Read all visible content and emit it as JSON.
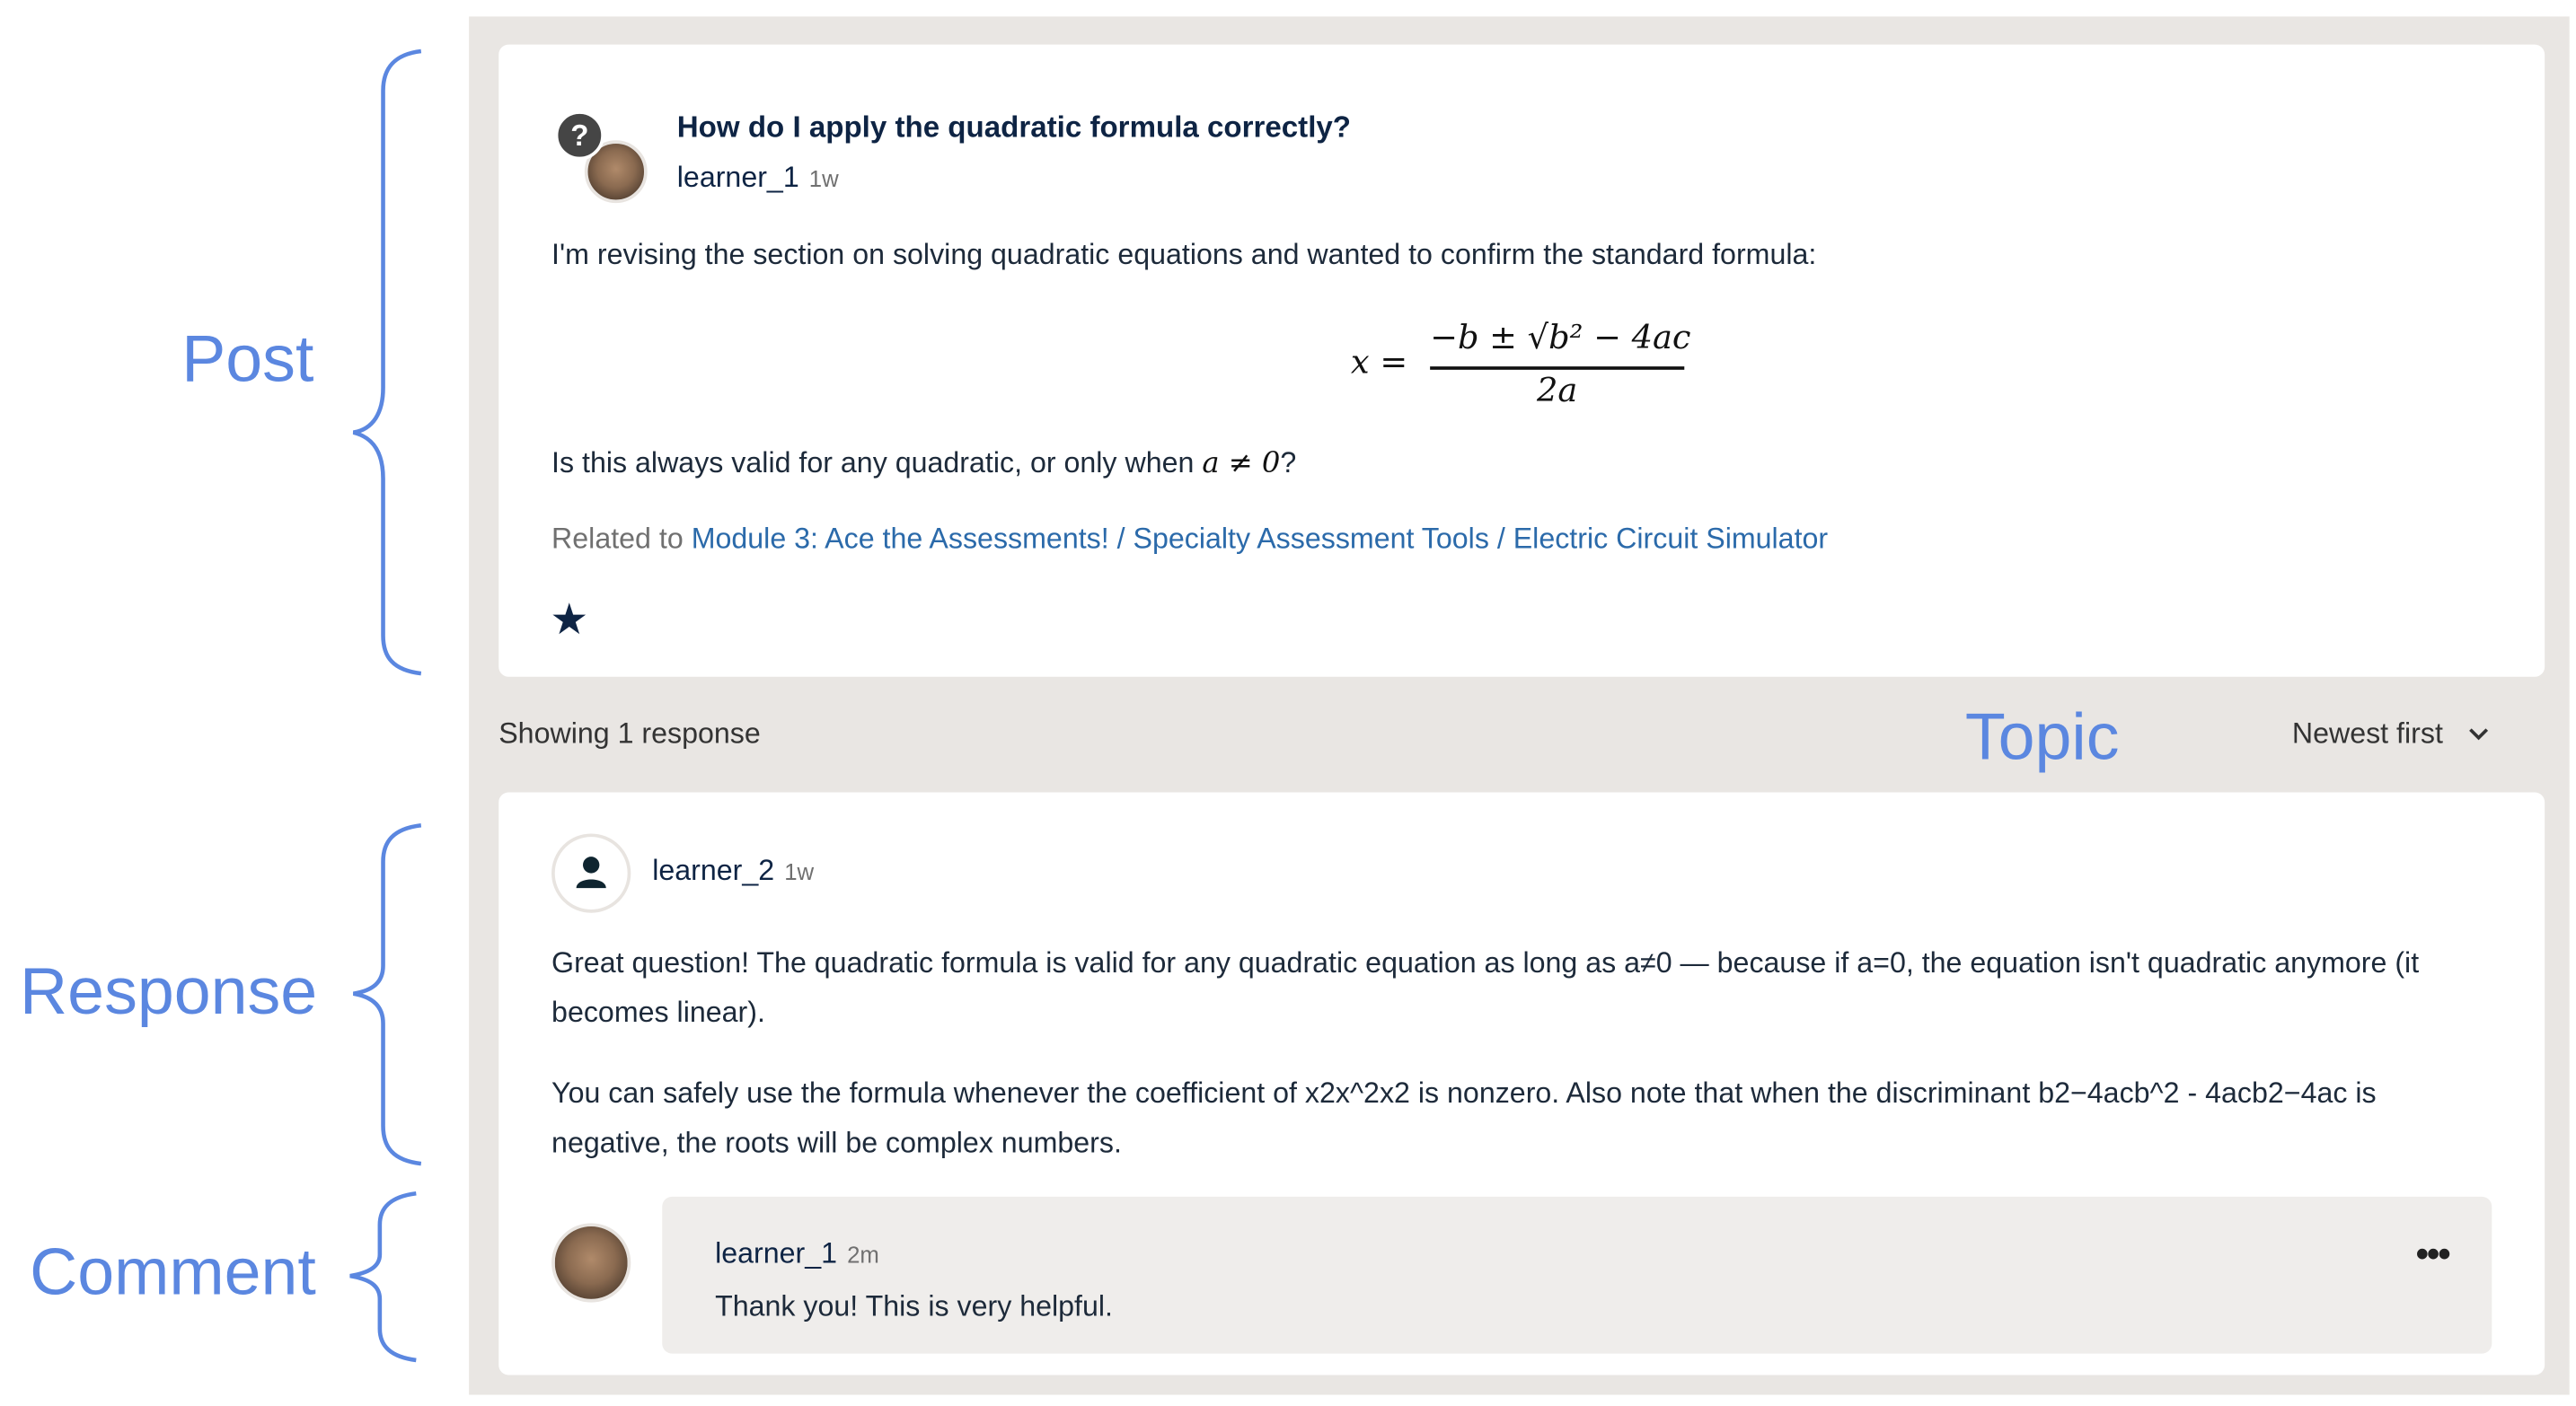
{
  "annotations": {
    "post": "Post",
    "response": "Response",
    "comment": "Comment",
    "topic": "Topic",
    "color": "#5b87e0"
  },
  "post": {
    "title": "How do I apply the quadratic formula correctly?",
    "author": "learner_1",
    "time": "1w",
    "body_intro": "I'm revising the section on solving quadratic equations and wanted to confirm the standard formula:",
    "formula": {
      "lhs": "x =",
      "numerator": "−b ± √b² − 4ac",
      "denominator": "2a"
    },
    "question_prefix": "Is this always valid for any quadratic, or only when ",
    "question_math": "a ≠ 0",
    "question_suffix": "?",
    "related_prefix": "Related to",
    "related_link": "Module 3: Ace the Assessments! / Specialty Assessment Tools / Electric Circuit Simulator",
    "icons": {
      "type": "question-icon",
      "follow": "star-icon"
    }
  },
  "responses_bar": {
    "count_text": "Showing 1 response",
    "sort_label": "Newest first"
  },
  "response": {
    "author": "learner_2",
    "time": "1w",
    "paragraph1": "Great question! The quadratic formula is valid for any quadratic equation as long as a≠0  — because if a=0, the equation isn't quadratic anymore (it becomes linear).",
    "paragraph2": "You can safely use the formula whenever the coefficient of x2x^2x2 is nonzero. Also note that when the discriminant b2−4acb^2 - 4acb2−4ac is negative, the roots will be complex numbers."
  },
  "comment": {
    "author": "learner_1",
    "time": "2m",
    "text": "Thank you! This is very helpful."
  },
  "colors": {
    "panel": "#e9e6e3",
    "comment_bg": "#efedeb",
    "link": "#2b6aaa",
    "title": "#0e2444"
  }
}
